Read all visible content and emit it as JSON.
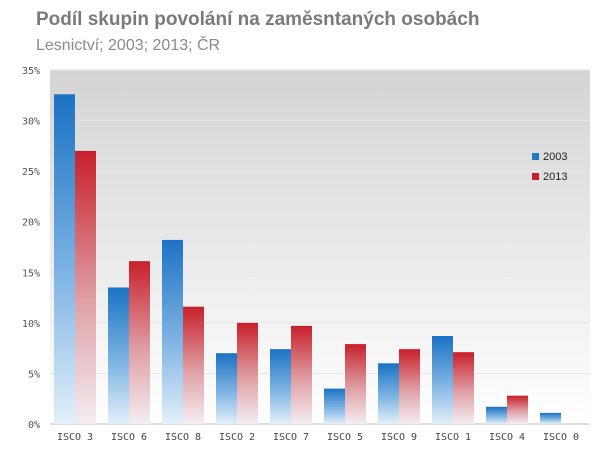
{
  "chart_data": {
    "type": "bar",
    "title": "Podíl skupin povolání na zaměsntaných osobách",
    "subtitle": "Lesnictví; 2003; 2013; ČR",
    "xlabel": "",
    "ylabel": "",
    "ylim": [
      0,
      35
    ],
    "yticks": [
      0,
      5,
      10,
      15,
      20,
      25,
      30,
      35
    ],
    "ytick_labels": [
      "0%",
      "5%",
      "10%",
      "15%",
      "20%",
      "25%",
      "30%",
      "35%"
    ],
    "grid": true,
    "legend_position": "right",
    "categories": [
      "ISCO 3",
      "ISCO 6",
      "ISCO 8",
      "ISCO 2",
      "ISCO 7",
      "ISCO 5",
      "ISCO 9",
      "ISCO 1",
      "ISCO 4",
      "ISCO 0"
    ],
    "series": [
      {
        "name": "2003",
        "color": "#1f77c8",
        "values": [
          32.6,
          13.5,
          18.2,
          7.0,
          7.4,
          3.5,
          6.0,
          8.7,
          1.7,
          1.1
        ]
      },
      {
        "name": "2013",
        "color": "#c8202a",
        "values": [
          27.0,
          16.1,
          11.6,
          10.0,
          9.7,
          7.9,
          7.4,
          7.1,
          2.8,
          0.0
        ]
      }
    ]
  }
}
